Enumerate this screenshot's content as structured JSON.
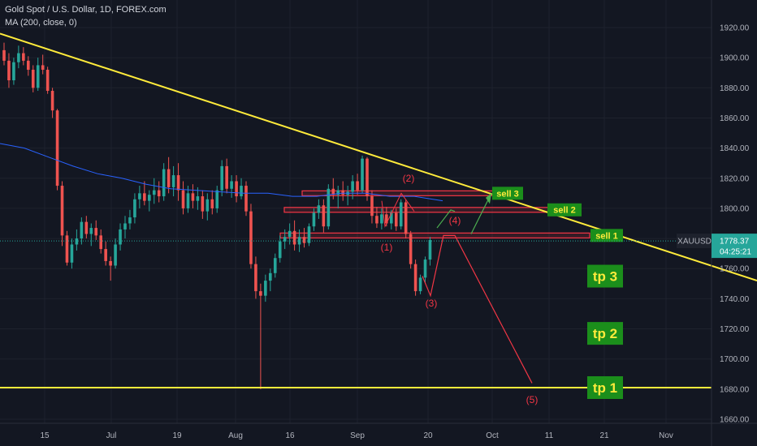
{
  "header": {
    "title": "Gold Spot / U.S. Dollar, 1D, FOREX.com",
    "indicator": "MA (200, close, 0)"
  },
  "colors": {
    "background": "#131722",
    "up": "#26a69a",
    "down": "#ef5350",
    "ma": "#2962ff",
    "trendline": "#ffeb3b",
    "zone": "#f23645",
    "label_box": "#1b8e1b",
    "label_text": "#ffeb3b",
    "bullish_arrow": "#4caf50",
    "bearish_path": "#f23645",
    "price_badge": "#26a69a"
  },
  "chart_data": {
    "type": "candlestick",
    "title": "Gold Spot / U.S. Dollar, 1D, FOREX.com",
    "symbol": "XAUUSD",
    "current_price": "1778.37",
    "countdown": "04:25:21",
    "y_axis": {
      "ticks": [
        "1920.00",
        "1900.00",
        "1880.00",
        "1860.00",
        "1840.00",
        "1820.00",
        "1800.00",
        "1780.00",
        "1760.00",
        "1740.00",
        "1720.00",
        "1700.00",
        "1680.00",
        "1660.00"
      ],
      "range": [
        1654,
        1928
      ]
    },
    "x_axis": {
      "ticks": [
        "15",
        "Jul",
        "19",
        "Aug",
        "16",
        "Sep",
        "20",
        "Oct",
        "11",
        "21",
        "Nov"
      ]
    },
    "candles": [
      [
        1905,
        1910,
        1895,
        1898
      ],
      [
        1898,
        1903,
        1880,
        1885
      ],
      [
        1885,
        1900,
        1882,
        1897
      ],
      [
        1897,
        1908,
        1893,
        1903
      ],
      [
        1903,
        1907,
        1895,
        1898
      ],
      [
        1898,
        1901,
        1888,
        1892
      ],
      [
        1892,
        1895,
        1877,
        1880
      ],
      [
        1880,
        1900,
        1878,
        1895
      ],
      [
        1895,
        1902,
        1889,
        1892
      ],
      [
        1892,
        1894,
        1876,
        1878
      ],
      [
        1878,
        1880,
        1860,
        1865
      ],
      [
        1865,
        1866,
        1812,
        1815
      ],
      [
        1815,
        1818,
        1775,
        1782
      ],
      [
        1782,
        1785,
        1762,
        1764
      ],
      [
        1764,
        1780,
        1760,
        1776
      ],
      [
        1776,
        1786,
        1772,
        1780
      ],
      [
        1780,
        1794,
        1776,
        1791
      ],
      [
        1791,
        1795,
        1780,
        1783
      ],
      [
        1783,
        1790,
        1775,
        1787
      ],
      [
        1787,
        1792,
        1779,
        1782
      ],
      [
        1782,
        1786,
        1770,
        1773
      ],
      [
        1773,
        1778,
        1762,
        1765
      ],
      [
        1765,
        1768,
        1752,
        1762
      ],
      [
        1762,
        1780,
        1760,
        1776
      ],
      [
        1776,
        1790,
        1772,
        1786
      ],
      [
        1786,
        1795,
        1780,
        1790
      ],
      [
        1790,
        1799,
        1786,
        1794
      ],
      [
        1794,
        1810,
        1790,
        1806
      ],
      [
        1806,
        1815,
        1800,
        1810
      ],
      [
        1810,
        1818,
        1802,
        1805
      ],
      [
        1805,
        1812,
        1798,
        1809
      ],
      [
        1809,
        1820,
        1803,
        1812
      ],
      [
        1812,
        1818,
        1804,
        1808
      ],
      [
        1808,
        1830,
        1805,
        1826
      ],
      [
        1826,
        1834,
        1810,
        1814
      ],
      [
        1814,
        1828,
        1808,
        1822
      ],
      [
        1822,
        1830,
        1805,
        1812
      ],
      [
        1812,
        1818,
        1796,
        1800
      ],
      [
        1800,
        1815,
        1797,
        1810
      ],
      [
        1810,
        1816,
        1800,
        1805
      ],
      [
        1805,
        1814,
        1799,
        1808
      ],
      [
        1808,
        1812,
        1793,
        1798
      ],
      [
        1798,
        1810,
        1792,
        1806
      ],
      [
        1806,
        1812,
        1796,
        1800
      ],
      [
        1800,
        1815,
        1797,
        1812
      ],
      [
        1812,
        1832,
        1808,
        1828
      ],
      [
        1828,
        1833,
        1810,
        1813
      ],
      [
        1813,
        1822,
        1807,
        1818
      ],
      [
        1818,
        1822,
        1804,
        1808
      ],
      [
        1808,
        1820,
        1806,
        1815
      ],
      [
        1815,
        1818,
        1795,
        1798
      ],
      [
        1798,
        1803,
        1760,
        1763
      ],
      [
        1763,
        1768,
        1740,
        1745
      ],
      [
        1745,
        1750,
        1680,
        1742
      ],
      [
        1742,
        1756,
        1738,
        1752
      ],
      [
        1752,
        1760,
        1745,
        1757
      ],
      [
        1757,
        1770,
        1754,
        1767
      ],
      [
        1767,
        1782,
        1764,
        1778
      ],
      [
        1778,
        1786,
        1773,
        1781
      ],
      [
        1781,
        1790,
        1776,
        1785
      ],
      [
        1785,
        1792,
        1772,
        1776
      ],
      [
        1776,
        1786,
        1771,
        1781
      ],
      [
        1781,
        1787,
        1774,
        1777
      ],
      [
        1777,
        1790,
        1775,
        1788
      ],
      [
        1788,
        1800,
        1785,
        1797
      ],
      [
        1797,
        1806,
        1793,
        1802
      ],
      [
        1802,
        1806,
        1784,
        1788
      ],
      [
        1788,
        1816,
        1786,
        1813
      ],
      [
        1813,
        1820,
        1806,
        1809
      ],
      [
        1809,
        1815,
        1800,
        1812
      ],
      [
        1812,
        1818,
        1805,
        1809
      ],
      [
        1809,
        1815,
        1802,
        1811
      ],
      [
        1811,
        1822,
        1806,
        1818
      ],
      [
        1818,
        1823,
        1809,
        1812
      ],
      [
        1812,
        1835,
        1810,
        1833
      ],
      [
        1833,
        1834,
        1805,
        1808
      ],
      [
        1808,
        1812,
        1790,
        1795
      ],
      [
        1795,
        1801,
        1787,
        1790
      ],
      [
        1790,
        1800,
        1786,
        1796
      ],
      [
        1796,
        1801,
        1788,
        1790
      ],
      [
        1790,
        1799,
        1786,
        1797
      ],
      [
        1797,
        1800,
        1785,
        1788
      ],
      [
        1788,
        1806,
        1786,
        1804
      ],
      [
        1804,
        1806,
        1780,
        1783
      ],
      [
        1783,
        1785,
        1760,
        1763
      ],
      [
        1763,
        1766,
        1742,
        1745
      ],
      [
        1745,
        1756,
        1743,
        1754
      ],
      [
        1754,
        1768,
        1750,
        1766
      ],
      [
        1766,
        1781,
        1762,
        1779
      ]
    ],
    "ma200": [
      [
        0,
        1843
      ],
      [
        30,
        1840
      ],
      [
        60,
        1834
      ],
      [
        90,
        1828
      ],
      [
        120,
        1823
      ],
      [
        150,
        1820
      ],
      [
        180,
        1816
      ],
      [
        210,
        1813
      ],
      [
        240,
        1812
      ],
      [
        270,
        1811
      ],
      [
        300,
        1810
      ],
      [
        330,
        1810
      ],
      [
        360,
        1808
      ],
      [
        390,
        1808
      ],
      [
        420,
        1810
      ],
      [
        450,
        1810
      ],
      [
        480,
        1808
      ],
      [
        510,
        1808
      ],
      [
        545,
        1805
      ]
    ],
    "trendline": {
      "from": [
        0,
        1916
      ],
      "to": [
        932,
        1752
      ]
    },
    "support_line": 1681,
    "zones": [
      {
        "price": 1810,
        "x_start": 372,
        "x_end": 610
      },
      {
        "price": 1799,
        "x_start": 350,
        "x_end": 676
      },
      {
        "price": 1782,
        "x_start": 345,
        "x_end": 726
      }
    ],
    "wave_labels": [
      {
        "text": "(1)",
        "price": 1774
      },
      {
        "text": "(2)",
        "price": 1820
      },
      {
        "text": "(3)",
        "price": 1737
      },
      {
        "text": "(4)",
        "price": 1792
      },
      {
        "text": "(5)",
        "price": 1673
      }
    ],
    "targets": [
      {
        "text": "sell 3",
        "price": 1810
      },
      {
        "text": "sell 2",
        "price": 1799
      },
      {
        "text": "sell 1",
        "price": 1782
      },
      {
        "text": "tp 3",
        "price": 1755
      },
      {
        "text": "tp 2",
        "price": 1717
      },
      {
        "text": "tp 1",
        "price": 1681
      }
    ]
  }
}
